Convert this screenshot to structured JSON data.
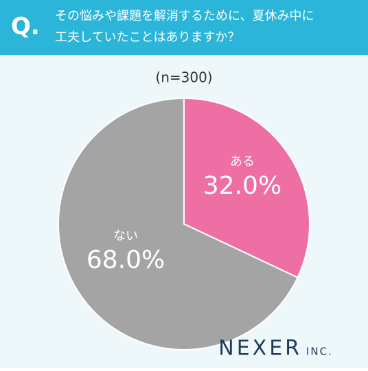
{
  "chart_data": {
    "type": "pie",
    "question_mark": "Q.",
    "title_lines": [
      "その悩みや課題を解消するために、夏休み中に",
      "工夫していたことはありますか？"
    ],
    "subtitle": "(n=300)",
    "categories": [
      "ある",
      "ない"
    ],
    "values": [
      32.0,
      68.0
    ],
    "value_labels": [
      "32.0%",
      "68.0%"
    ],
    "colors": [
      "#ee6fa3",
      "#a4a4a4"
    ],
    "logo": "NEXER",
    "logo_suffix": "INC."
  }
}
